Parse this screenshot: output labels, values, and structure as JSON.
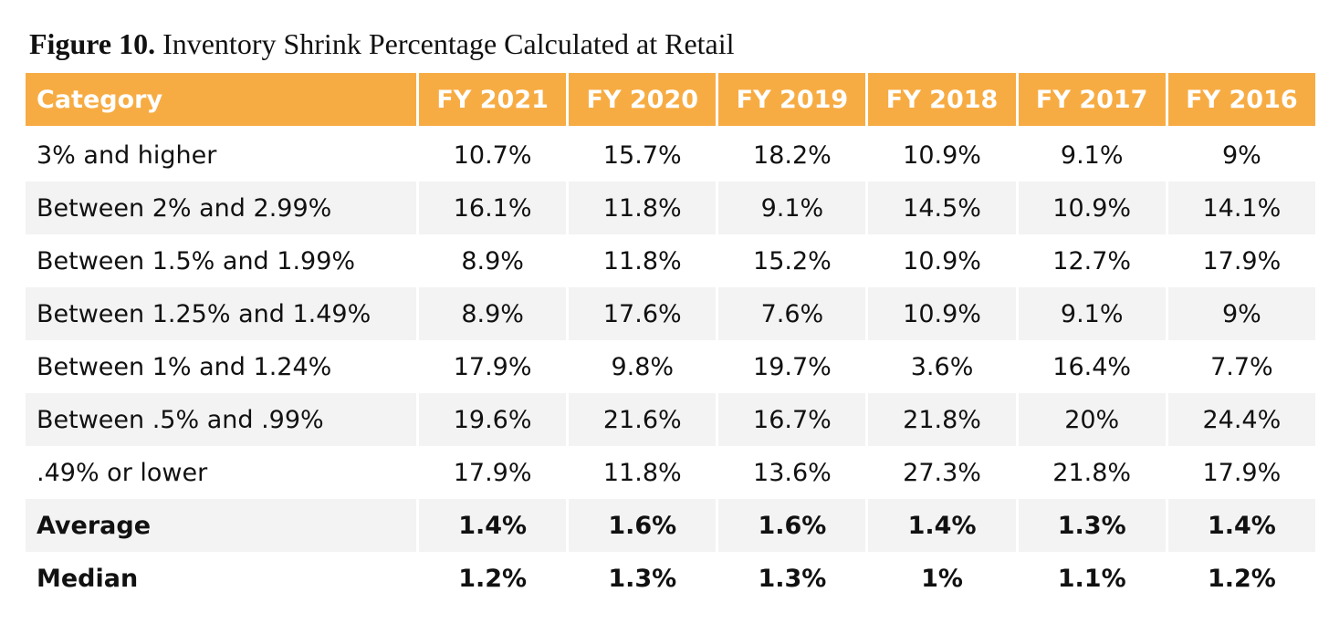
{
  "figure": {
    "label": "Figure 10.",
    "title": "Inventory Shrink Percentage Calculated at Retail"
  },
  "chart_data": {
    "type": "table",
    "title": "Figure 10. Inventory Shrink Percentage Calculated at Retail",
    "columns": [
      "Category",
      "FY 2021",
      "FY 2020",
      "FY 2019",
      "FY 2018",
      "FY 2017",
      "FY 2016"
    ],
    "rows": [
      {
        "category": "3% and higher",
        "values": [
          "10.7%",
          "15.7%",
          "18.2%",
          "10.9%",
          "9.1%",
          "9%"
        ]
      },
      {
        "category": "Between 2% and 2.99%",
        "values": [
          "16.1%",
          "11.8%",
          "9.1%",
          "14.5%",
          "10.9%",
          "14.1%"
        ]
      },
      {
        "category": "Between 1.5% and 1.99%",
        "values": [
          "8.9%",
          "11.8%",
          "15.2%",
          "10.9%",
          "12.7%",
          "17.9%"
        ]
      },
      {
        "category": "Between 1.25% and 1.49%",
        "values": [
          "8.9%",
          "17.6%",
          "7.6%",
          "10.9%",
          "9.1%",
          "9%"
        ]
      },
      {
        "category": "Between 1% and 1.24%",
        "values": [
          "17.9%",
          "9.8%",
          "19.7%",
          "3.6%",
          "16.4%",
          "7.7%"
        ]
      },
      {
        "category": "Between .5% and .99%",
        "values": [
          "19.6%",
          "21.6%",
          "16.7%",
          "21.8%",
          "20%",
          "24.4%"
        ]
      },
      {
        "category": ".49% or lower",
        "values": [
          "17.9%",
          "11.8%",
          "13.6%",
          "27.3%",
          "21.8%",
          "17.9%"
        ]
      },
      {
        "category": "Average",
        "values": [
          "1.4%",
          "1.6%",
          "1.6%",
          "1.4%",
          "1.3%",
          "1.4%"
        ]
      },
      {
        "category": "Median",
        "values": [
          "1.2%",
          "1.3%",
          "1.3%",
          "1%",
          "1.1%",
          "1.2%"
        ]
      }
    ]
  },
  "colors": {
    "header_bg": "#f7ac43",
    "header_text": "#ffffff",
    "band_bg": "#f3f3f3"
  }
}
